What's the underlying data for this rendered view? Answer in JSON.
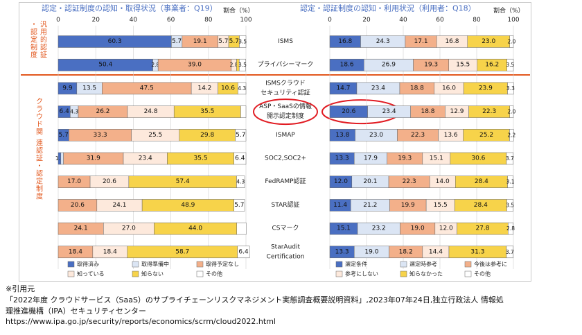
{
  "colors": {
    "outer_border": "#c9c9c9",
    "group_text": "#e2581e",
    "separator": "#e2581e",
    "circle": "#e11b22",
    "bar_stroke": "#666666"
  },
  "legend_left": [
    {
      "label": "取得済み",
      "color": "#4a6fc2"
    },
    {
      "label": "取得準備中",
      "color": "#dbe5f4"
    },
    {
      "label": "取得予定なし",
      "color": "#f3b08a"
    },
    {
      "label": "知っている",
      "color": "#fde9dc"
    },
    {
      "label": "知らない",
      "color": "#f7d34a"
    },
    {
      "label": "その他",
      "color": "#ffffff"
    }
  ],
  "legend_right": [
    {
      "label": "選定条件",
      "color": "#4a6fc2"
    },
    {
      "label": "選定時参考",
      "color": "#dbe5f4"
    },
    {
      "label": "今後は参考に",
      "color": "#f3b08a"
    },
    {
      "label": "参考にしない",
      "color": "#fde9dc"
    },
    {
      "label": "知らなかった",
      "color": "#f7d34a"
    },
    {
      "label": "その他",
      "color": "#ffffff"
    }
  ],
  "groups": {
    "general": "汎用的認証・認定制度",
    "cloud": "クラウド関連 認証・認定制度"
  },
  "chart_data": [
    {
      "type": "stacked-bar-horizontal",
      "title": "認定・認証制度の認知・取得状況（事業者：Q19）",
      "axis_label": "割合（%）",
      "ticks": [
        0,
        20,
        40,
        60,
        80,
        100
      ],
      "xlim": [
        0,
        100
      ],
      "series": [
        "取得済み",
        "取得準備中",
        "取得予定なし",
        "知っている",
        "知らない",
        "その他"
      ],
      "rows": [
        {
          "category": "ISMS",
          "values": [
            60.3,
            5.7,
            19.1,
            5.7,
            5.7,
            3.5
          ],
          "labels": [
            "60.3",
            "5.7",
            "19.1",
            "5.7",
            "5.7",
            "3.5"
          ]
        },
        {
          "category": "プライバシーマーク",
          "values": [
            50.4,
            2.8,
            39.0,
            2.8,
            1.4,
            3.5
          ],
          "labels": [
            "50.4",
            "2.8",
            "39.0",
            "2.8",
            "",
            "3.5"
          ]
        },
        {
          "category": "ISMSクラウドセキュリティ認証",
          "values": [
            9.9,
            13.5,
            47.5,
            14.2,
            10.6,
            4.3
          ],
          "labels": [
            "9.9",
            "13.5",
            "47.5",
            "14.2",
            "10.6",
            "4.3"
          ]
        },
        {
          "category": "ASP・SaaSの情報開示認定制度",
          "values": [
            6.4,
            4.3,
            26.2,
            24.8,
            35.5,
            2.8
          ],
          "labels": [
            "6.4",
            "4.3",
            "26.2",
            "24.8",
            "35.5",
            ""
          ]
        },
        {
          "category": "ISMAP",
          "values": [
            5.7,
            0,
            33.3,
            25.5,
            29.8,
            5.7
          ],
          "labels": [
            "5.7",
            "",
            "33.3",
            "25.5",
            "29.8",
            "5.7"
          ]
        },
        {
          "category": "SOC2,SOC2+",
          "values": [
            1.4,
            1.4,
            31.9,
            23.4,
            35.5,
            6.4
          ],
          "labels": [
            "1.4",
            "",
            "31.9",
            "23.4",
            "35.5",
            "6.4"
          ]
        },
        {
          "category": "FedRAMP認証",
          "values": [
            0,
            0,
            17.0,
            20.6,
            57.4,
            4.3
          ],
          "labels": [
            "",
            "",
            "17.0",
            "20.6",
            "57.4",
            "4.3"
          ]
        },
        {
          "category": "STAR認証",
          "values": [
            0,
            0,
            20.6,
            24.1,
            48.9,
            5.7
          ],
          "labels": [
            "",
            "",
            "20.6",
            "24.1",
            "48.9",
            "5.7"
          ]
        },
        {
          "category": "CSマーク",
          "values": [
            0,
            0,
            24.1,
            27.0,
            44.0,
            5.0
          ],
          "labels": [
            "",
            "",
            "24.1",
            "27.0",
            "44.0",
            ""
          ]
        },
        {
          "category": "StarAudit Certification",
          "values": [
            0,
            0,
            18.4,
            18.4,
            58.7,
            6.4
          ],
          "labels": [
            "",
            "",
            "18.4",
            "18.4",
            "58.7",
            "6.4"
          ]
        }
      ]
    },
    {
      "type": "stacked-bar-horizontal",
      "title": "認定・認証制度の認知・利用状況（利用者：Q18）",
      "axis_label": "割合（%）",
      "ticks": [
        0,
        20,
        40,
        60,
        80,
        100
      ],
      "xlim": [
        0,
        100
      ],
      "series": [
        "選定条件",
        "選定時参考",
        "今後は参考に",
        "参考にしない",
        "知らなかった",
        "その他"
      ],
      "rows": [
        {
          "category": "ISMS",
          "values": [
            16.8,
            24.3,
            17.1,
            16.8,
            23.0,
            2.0
          ],
          "labels": [
            "16.8",
            "24.3",
            "17.1",
            "16.8",
            "23.0",
            "2.0"
          ]
        },
        {
          "category": "プライバシーマーク",
          "values": [
            18.6,
            26.9,
            19.3,
            15.5,
            16.2,
            3.5
          ],
          "labels": [
            "18.6",
            "26.9",
            "19.3",
            "15.5",
            "16.2",
            "3.5"
          ]
        },
        {
          "category": "ISMSクラウドセキュリティ認証",
          "values": [
            14.7,
            23.4,
            18.8,
            16.0,
            23.9,
            3.3
          ],
          "labels": [
            "14.7",
            "23.4",
            "18.8",
            "16.0",
            "23.9",
            "3.3"
          ]
        },
        {
          "category": "ASP・SaaSの情報開示認定制度",
          "values": [
            20.6,
            23.4,
            18.8,
            12.9,
            22.3,
            2.0
          ],
          "labels": [
            "20.6",
            "23.4",
            "18.8",
            "12.9",
            "22.3",
            "2.0"
          ]
        },
        {
          "category": "ISMAP",
          "values": [
            13.8,
            23.0,
            22.3,
            13.6,
            25.2,
            2.2
          ],
          "labels": [
            "13.8",
            "23.0",
            "22.3",
            "13.6",
            "25.2",
            "2.2"
          ]
        },
        {
          "category": "SOC2,SOC2+",
          "values": [
            13.3,
            17.9,
            19.3,
            15.1,
            30.6,
            3.7
          ],
          "labels": [
            "13.3",
            "17.9",
            "19.3",
            "15.1",
            "30.6",
            "3.7"
          ]
        },
        {
          "category": "FedRAMP認証",
          "values": [
            12.0,
            20.1,
            22.3,
            14.0,
            28.4,
            3.1
          ],
          "labels": [
            "12.0",
            "20.1",
            "22.3",
            "14.0",
            "28.4",
            "3.1"
          ]
        },
        {
          "category": "STAR認証",
          "values": [
            11.4,
            21.2,
            19.9,
            15.5,
            28.4,
            3.5
          ],
          "labels": [
            "11.4",
            "21.2",
            "19.9",
            "15.5",
            "28.4",
            "3.5"
          ]
        },
        {
          "category": "CSマーク",
          "values": [
            15.1,
            23.2,
            19.0,
            12.0,
            27.8,
            2.8
          ],
          "labels": [
            "15.1",
            "23.2",
            "19.0",
            "12.0",
            "27.8",
            "2.8"
          ]
        },
        {
          "category": "StarAudit Certification",
          "values": [
            13.3,
            19.0,
            18.2,
            14.4,
            31.3,
            3.7
          ],
          "labels": [
            "13.3",
            "19.0",
            "18.2",
            "14.4",
            "31.3",
            "3.7"
          ]
        }
      ]
    }
  ],
  "citation": {
    "line1": "※引用元",
    "line2": "「2022年度 クラウドサービス（SaaS）のサプライチェーンリスクマネジメント実態調査概要説明資料」,2023年07年24日,独立行政法人 情報処",
    "line3": "理推進機構（IPA）セキュリティセンター",
    "line4": "https://www.ipa.go.jp/security/reports/economics/scrm/cloud2022.html"
  }
}
